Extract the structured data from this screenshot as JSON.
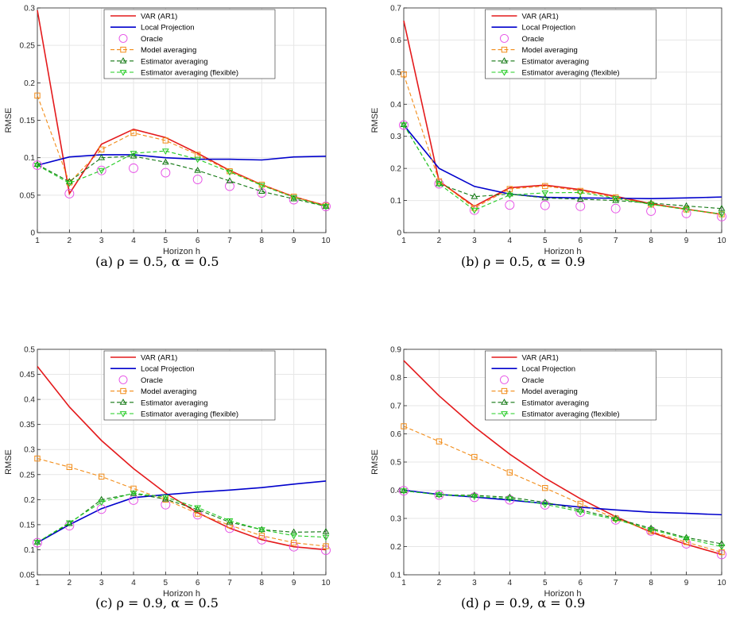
{
  "chart_data": [
    {
      "type": "line",
      "caption": "(a) ρ = 0.5,  α = 0.5",
      "xlabel": "Horizon h",
      "ylabel": "RMSE",
      "x": [
        1,
        2,
        3,
        4,
        5,
        6,
        7,
        8,
        9,
        10
      ],
      "xlim": [
        1,
        10
      ],
      "ylim": [
        0,
        0.3
      ],
      "yticks": [
        "0",
        "0.05",
        "0.1",
        "0.15",
        "0.2",
        "0.25",
        "0.3"
      ],
      "grid": true,
      "legend_position": "top-center",
      "series": [
        {
          "name": "VAR (AR1)",
          "values": [
            0.297,
            0.052,
            0.118,
            0.138,
            0.127,
            0.106,
            0.083,
            0.064,
            0.048,
            0.036
          ]
        },
        {
          "name": "Local Projection",
          "values": [
            0.09,
            0.101,
            0.104,
            0.104,
            0.1,
            0.098,
            0.098,
            0.097,
            0.101,
            0.102
          ]
        },
        {
          "name": "Oracle",
          "values": [
            0.09,
            0.052,
            0.083,
            0.086,
            0.08,
            0.071,
            0.062,
            0.053,
            0.044,
            0.035
          ]
        },
        {
          "name": "Model averaging",
          "values": [
            0.183,
            0.067,
            0.111,
            0.133,
            0.123,
            0.104,
            0.082,
            0.064,
            0.048,
            0.036
          ]
        },
        {
          "name": "Estimator averaging",
          "values": [
            0.091,
            0.068,
            0.1,
            0.102,
            0.094,
            0.083,
            0.069,
            0.055,
            0.045,
            0.035
          ]
        },
        {
          "name": "Estimator averaging (flexible)",
          "values": [
            0.09,
            0.066,
            0.083,
            0.106,
            0.109,
            0.098,
            0.081,
            0.063,
            0.047,
            0.035
          ]
        }
      ]
    },
    {
      "type": "line",
      "caption": "(b) ρ = 0.5,  α = 0.9",
      "xlabel": "Horizon h",
      "ylabel": "RMSE",
      "x": [
        1,
        2,
        3,
        4,
        5,
        6,
        7,
        8,
        9,
        10
      ],
      "xlim": [
        1,
        10
      ],
      "ylim": [
        0,
        0.7
      ],
      "yticks": [
        "0",
        "0.1",
        "0.2",
        "0.3",
        "0.4",
        "0.5",
        "0.6",
        "0.7"
      ],
      "grid": true,
      "legend_position": "top-center",
      "series": [
        {
          "name": "VAR (AR1)",
          "values": [
            0.66,
            0.16,
            0.082,
            0.14,
            0.148,
            0.134,
            0.113,
            0.09,
            0.073,
            0.057
          ]
        },
        {
          "name": "Local Projection",
          "values": [
            0.335,
            0.2,
            0.144,
            0.12,
            0.11,
            0.108,
            0.107,
            0.106,
            0.108,
            0.111
          ]
        },
        {
          "name": "Oracle",
          "values": [
            0.335,
            0.152,
            0.07,
            0.086,
            0.085,
            0.082,
            0.075,
            0.067,
            0.06,
            0.05
          ]
        },
        {
          "name": "Model averaging",
          "values": [
            0.493,
            0.16,
            0.077,
            0.136,
            0.145,
            0.13,
            0.11,
            0.088,
            0.072,
            0.057
          ]
        },
        {
          "name": "Estimator averaging",
          "values": [
            0.336,
            0.152,
            0.112,
            0.12,
            0.108,
            0.104,
            0.1,
            0.092,
            0.083,
            0.075
          ]
        },
        {
          "name": "Estimator averaging (flexible)",
          "values": [
            0.336,
            0.152,
            0.07,
            0.117,
            0.124,
            0.125,
            0.107,
            0.088,
            0.072,
            0.058
          ]
        }
      ]
    },
    {
      "type": "line",
      "caption": "(c) ρ = 0.9,  α = 0.5",
      "xlabel": "Horizon h",
      "ylabel": "RMSE",
      "x": [
        1,
        2,
        3,
        4,
        5,
        6,
        7,
        8,
        9,
        10
      ],
      "xlim": [
        1,
        10
      ],
      "ylim": [
        0.05,
        0.5
      ],
      "yticks": [
        "0.05",
        "0.1",
        "0.15",
        "0.2",
        "0.25",
        "0.3",
        "0.35",
        "0.4",
        "0.45",
        "0.5"
      ],
      "grid": true,
      "legend_position": "top-center",
      "series": [
        {
          "name": "VAR (AR1)",
          "values": [
            0.466,
            0.385,
            0.318,
            0.262,
            0.213,
            0.174,
            0.143,
            0.12,
            0.106,
            0.1
          ]
        },
        {
          "name": "Local Projection",
          "values": [
            0.114,
            0.15,
            0.182,
            0.204,
            0.21,
            0.215,
            0.219,
            0.224,
            0.231,
            0.237
          ]
        },
        {
          "name": "Oracle",
          "values": [
            0.114,
            0.148,
            0.181,
            0.199,
            0.19,
            0.17,
            0.143,
            0.12,
            0.106,
            0.099
          ]
        },
        {
          "name": "Model averaging",
          "values": [
            0.282,
            0.265,
            0.246,
            0.222,
            0.2,
            0.172,
            0.149,
            0.128,
            0.114,
            0.107
          ]
        },
        {
          "name": "Estimator averaging",
          "values": [
            0.115,
            0.152,
            0.2,
            0.212,
            0.201,
            0.18,
            0.155,
            0.14,
            0.135,
            0.136
          ]
        },
        {
          "name": "Estimator averaging (flexible)",
          "values": [
            0.115,
            0.154,
            0.195,
            0.213,
            0.205,
            0.184,
            0.158,
            0.14,
            0.128,
            0.125
          ]
        }
      ]
    },
    {
      "type": "line",
      "caption": "(d) ρ = 0.9,  α = 0.9",
      "xlabel": "Horizon h",
      "ylabel": "RMSE",
      "x": [
        1,
        2,
        3,
        4,
        5,
        6,
        7,
        8,
        9,
        10
      ],
      "xlim": [
        1,
        10
      ],
      "ylim": [
        0.1,
        0.9
      ],
      "yticks": [
        "0.1",
        "0.2",
        "0.3",
        "0.4",
        "0.5",
        "0.6",
        "0.7",
        "0.8",
        "0.9"
      ],
      "grid": true,
      "legend_position": "top-center",
      "series": [
        {
          "name": "VAR (AR1)",
          "values": [
            0.86,
            0.735,
            0.625,
            0.528,
            0.443,
            0.37,
            0.306,
            0.251,
            0.208,
            0.172
          ]
        },
        {
          "name": "Local Projection",
          "values": [
            0.4,
            0.385,
            0.376,
            0.365,
            0.353,
            0.34,
            0.33,
            0.322,
            0.318,
            0.313
          ]
        },
        {
          "name": "Oracle",
          "values": [
            0.398,
            0.383,
            0.375,
            0.366,
            0.348,
            0.322,
            0.295,
            0.255,
            0.21,
            0.172
          ]
        },
        {
          "name": "Model averaging",
          "values": [
            0.627,
            0.573,
            0.518,
            0.463,
            0.408,
            0.352,
            0.3,
            0.254,
            0.216,
            0.18
          ]
        },
        {
          "name": "Estimator averaging",
          "values": [
            0.398,
            0.384,
            0.382,
            0.375,
            0.357,
            0.33,
            0.3,
            0.265,
            0.232,
            0.21
          ]
        },
        {
          "name": "Estimator averaging (flexible)",
          "values": [
            0.398,
            0.384,
            0.378,
            0.37,
            0.35,
            0.324,
            0.296,
            0.261,
            0.228,
            0.2
          ]
        }
      ]
    }
  ],
  "style": {
    "series_colors": [
      "#e41a1c",
      "#0000cc",
      "#e64ce6",
      "#f28c18",
      "#117711",
      "#22cc22"
    ],
    "series_markers": [
      "none",
      "none",
      "circle",
      "square",
      "triangle-up",
      "triangle-down"
    ],
    "series_dash": [
      "solid",
      "solid",
      "none",
      "dashed",
      "dashed",
      "dashed"
    ],
    "grid_color": "#e6e6e6"
  }
}
